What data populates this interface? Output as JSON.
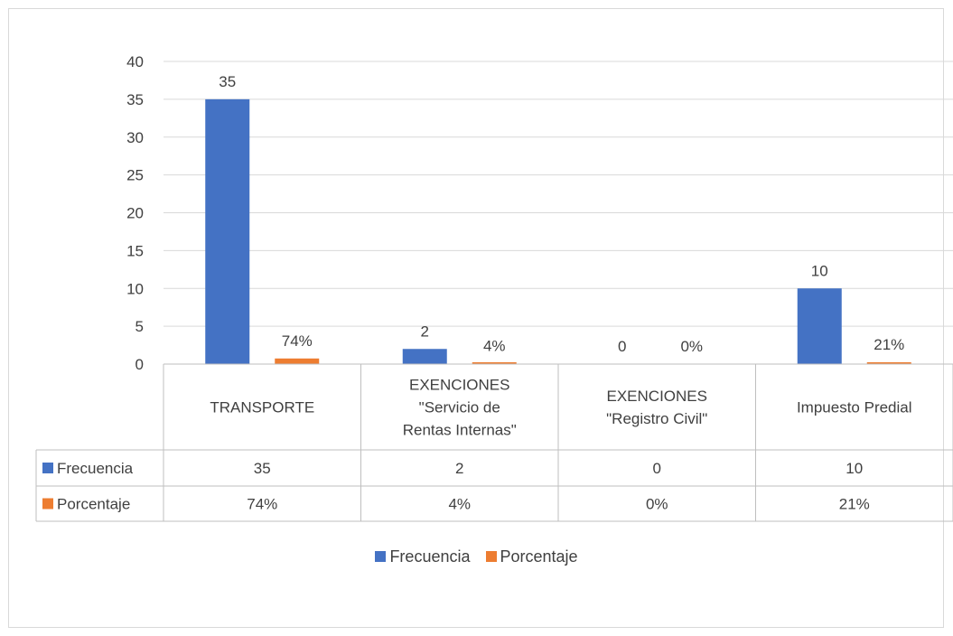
{
  "chart_data": {
    "type": "bar",
    "categories": [
      [
        "TRANSPORTE"
      ],
      [
        "EXENCIONES",
        "\"Servicio de",
        "Rentas Internas\""
      ],
      [
        "EXENCIONES",
        "\"Registro Civil\""
      ],
      [
        "Impuesto Predial"
      ]
    ],
    "series": [
      {
        "name": "Frecuencia",
        "values": [
          35,
          2,
          0,
          10
        ],
        "labels": [
          "35",
          "2",
          "0",
          "10"
        ],
        "table_values": [
          "35",
          "2",
          "0",
          "10"
        ],
        "color": "#4472c4"
      },
      {
        "name": "Porcentaje",
        "values": [
          0.74,
          0.04,
          0,
          0.21
        ],
        "labels": [
          "74%",
          "4%",
          "0%",
          "21%"
        ],
        "table_values": [
          "74%",
          "4%",
          "0%",
          "21%"
        ],
        "color": "#ed7d31"
      }
    ],
    "y_ticks": [
      "0",
      "5",
      "10",
      "15",
      "20",
      "25",
      "30",
      "35",
      "40"
    ],
    "ylim": [
      0,
      40
    ],
    "grid": true,
    "data_table": true,
    "legend_position": "bottom"
  },
  "legend": {
    "items": [
      {
        "label": "Frecuencia",
        "color": "#4472c4"
      },
      {
        "label": "Porcentaje",
        "color": "#ed7d31"
      }
    ]
  }
}
